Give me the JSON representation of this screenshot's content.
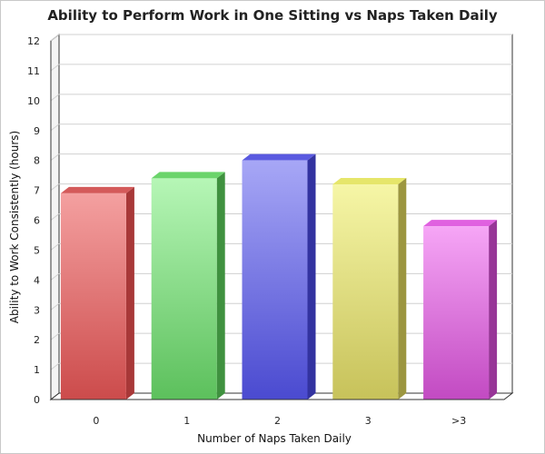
{
  "chart_data": {
    "type": "bar",
    "title": "Ability to Perform Work in One Sitting vs Naps Taken Daily",
    "xlabel": "Number of Naps Taken Daily",
    "ylabel": "Ability to Work Consistently (hours)",
    "categories": [
      "0",
      "1",
      "2",
      "3",
      ">3"
    ],
    "values": [
      6.9,
      7.4,
      8.0,
      7.2,
      5.8
    ],
    "ylim": [
      0,
      12
    ],
    "yticks": [
      "0",
      "1",
      "2",
      "3",
      "4",
      "5",
      "6",
      "7",
      "8",
      "9",
      "10",
      "11",
      "12"
    ],
    "grid": true,
    "bar_colors": [
      {
        "top": "#f4a0a0",
        "bottom": "#cc4b4b",
        "side": "#a83838",
        "cap": "#d45a5a"
      },
      {
        "top": "#b6f6b6",
        "bottom": "#5cc05c",
        "side": "#3f913f",
        "cap": "#6bd46b"
      },
      {
        "top": "#a7a7f6",
        "bottom": "#4a4ad0",
        "side": "#3333a0",
        "cap": "#5a5ae0"
      },
      {
        "top": "#f6f6a6",
        "bottom": "#c7c25a",
        "side": "#9c9640",
        "cap": "#e6e66a"
      },
      {
        "top": "#f6a6f6",
        "bottom": "#c24ac2",
        "side": "#973597",
        "cap": "#e060e0"
      }
    ]
  }
}
